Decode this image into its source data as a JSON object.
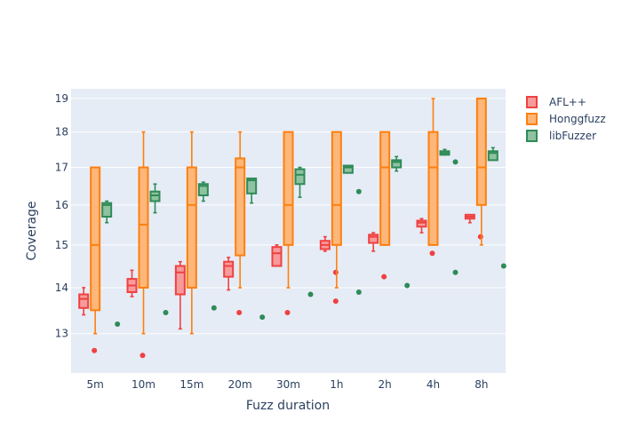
{
  "chart_data": {
    "type": "box",
    "title": "",
    "xlabel": "Fuzz duration",
    "ylabel": "Coverage",
    "categories": [
      "5m",
      "10m",
      "15m",
      "20m",
      "30m",
      "1h",
      "2h",
      "4h",
      "8h"
    ],
    "y_axis": {
      "scale": "log",
      "range": [
        12.2,
        19.3
      ],
      "ticks": [
        13,
        14,
        15,
        16,
        17,
        18,
        19
      ]
    },
    "grid": true,
    "legend_position": "top-right",
    "colors": {
      "plot_bg": "#e5ecf6",
      "grid": "#ffffff",
      "axis_text": "#2a3f5f"
    },
    "series": [
      {
        "name": "AFL++",
        "color": "#ef4141",
        "fill": "#f79a9a",
        "boxes": [
          {
            "min": 13.4,
            "q1": 13.55,
            "median": 13.75,
            "q3": 13.85,
            "max": 14.0,
            "outliers": [
              12.65
            ]
          },
          {
            "min": 13.8,
            "q1": 13.9,
            "median": 14.05,
            "q3": 14.2,
            "max": 14.4,
            "outliers": [
              12.55
            ]
          },
          {
            "min": 13.1,
            "q1": 13.85,
            "median": 14.35,
            "q3": 14.5,
            "max": 14.6,
            "outliers": []
          },
          {
            "min": 13.95,
            "q1": 14.25,
            "median": 14.5,
            "q3": 14.6,
            "max": 14.7,
            "outliers": [
              13.45
            ]
          },
          {
            "min": 14.5,
            "q1": 14.5,
            "median": 14.8,
            "q3": 14.95,
            "max": 15.0,
            "outliers": [
              13.45
            ]
          },
          {
            "min": 14.85,
            "q1": 14.9,
            "median": 15.0,
            "q3": 15.1,
            "max": 15.2,
            "outliers": [
              14.35,
              13.7
            ]
          },
          {
            "min": 14.85,
            "q1": 15.05,
            "median": 15.2,
            "q3": 15.25,
            "max": 15.3,
            "outliers": [
              14.25
            ]
          },
          {
            "min": 15.3,
            "q1": 15.45,
            "median": 15.55,
            "q3": 15.6,
            "max": 15.65,
            "outliers": [
              14.8
            ]
          },
          {
            "min": 15.55,
            "q1": 15.65,
            "median": 15.7,
            "q3": 15.75,
            "max": 15.75,
            "outliers": [
              15.2
            ]
          }
        ]
      },
      {
        "name": "Honggfuzz",
        "color": "#ff7f0e",
        "fill": "#fdb77a",
        "boxes": [
          {
            "min": 13.0,
            "q1": 13.5,
            "median": 15.0,
            "q3": 17.0,
            "max": 17.0,
            "outliers": []
          },
          {
            "min": 13.0,
            "q1": 14.0,
            "median": 15.5,
            "q3": 17.0,
            "max": 18.0,
            "outliers": []
          },
          {
            "min": 13.0,
            "q1": 14.0,
            "median": 16.0,
            "q3": 17.0,
            "max": 18.0,
            "outliers": []
          },
          {
            "min": 14.0,
            "q1": 14.75,
            "median": 17.0,
            "q3": 17.25,
            "max": 18.0,
            "outliers": []
          },
          {
            "min": 14.0,
            "q1": 15.0,
            "median": 16.0,
            "q3": 18.0,
            "max": 18.0,
            "outliers": []
          },
          {
            "min": 14.0,
            "q1": 15.0,
            "median": 16.0,
            "q3": 18.0,
            "max": 18.0,
            "outliers": []
          },
          {
            "min": 15.0,
            "q1": 15.0,
            "median": 17.0,
            "q3": 18.0,
            "max": 18.0,
            "outliers": []
          },
          {
            "min": 15.0,
            "q1": 15.0,
            "median": 17.0,
            "q3": 18.0,
            "max": 19.0,
            "outliers": []
          },
          {
            "min": 15.0,
            "q1": 16.0,
            "median": 17.0,
            "q3": 19.0,
            "max": 19.0,
            "outliers": []
          }
        ]
      },
      {
        "name": "libFuzzer",
        "color": "#2e8b57",
        "fill": "#8fc2a0",
        "boxes": [
          {
            "min": 15.55,
            "q1": 15.7,
            "median": 16.0,
            "q3": 16.05,
            "max": 16.1,
            "outliers": [
              13.2
            ]
          },
          {
            "min": 15.8,
            "q1": 16.1,
            "median": 16.25,
            "q3": 16.35,
            "max": 16.55,
            "outliers": [
              13.45
            ]
          },
          {
            "min": 16.1,
            "q1": 16.25,
            "median": 16.5,
            "q3": 16.55,
            "max": 16.6,
            "outliers": [
              13.55
            ]
          },
          {
            "min": 16.05,
            "q1": 16.3,
            "median": 16.65,
            "q3": 16.7,
            "max": 16.7,
            "outliers": [
              13.35
            ]
          },
          {
            "min": 16.2,
            "q1": 16.55,
            "median": 16.8,
            "q3": 16.95,
            "max": 17.0,
            "outliers": [
              13.85
            ]
          },
          {
            "min": 16.85,
            "q1": 16.85,
            "median": 17.0,
            "q3": 17.05,
            "max": 17.05,
            "outliers": [
              16.35,
              13.9
            ]
          },
          {
            "min": 16.9,
            "q1": 17.0,
            "median": 17.15,
            "q3": 17.2,
            "max": 17.3,
            "outliers": [
              14.05
            ]
          },
          {
            "min": 17.35,
            "q1": 17.35,
            "median": 17.4,
            "q3": 17.45,
            "max": 17.5,
            "outliers": [
              17.15,
              14.35
            ]
          },
          {
            "min": 17.2,
            "q1": 17.2,
            "median": 17.4,
            "q3": 17.45,
            "max": 17.55,
            "outliers": [
              14.5
            ]
          }
        ]
      }
    ]
  }
}
